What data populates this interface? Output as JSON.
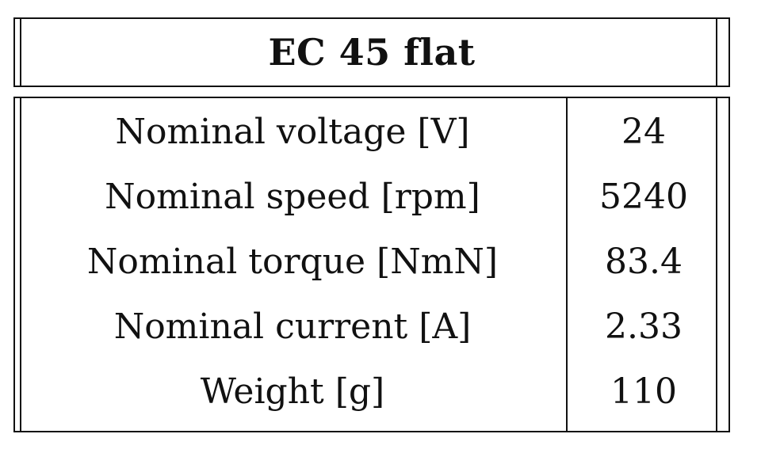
{
  "table": {
    "title": "EC 45 flat",
    "rows": [
      {
        "label": "Nominal voltage [V]",
        "value": "24"
      },
      {
        "label": "Nominal speed [rpm]",
        "value": "5240"
      },
      {
        "label": "Nominal torque [NmN]",
        "value": "83.4"
      },
      {
        "label": "Nominal current [A]",
        "value": "2.33"
      },
      {
        "label": "Weight [g]",
        "value": "110"
      }
    ]
  }
}
